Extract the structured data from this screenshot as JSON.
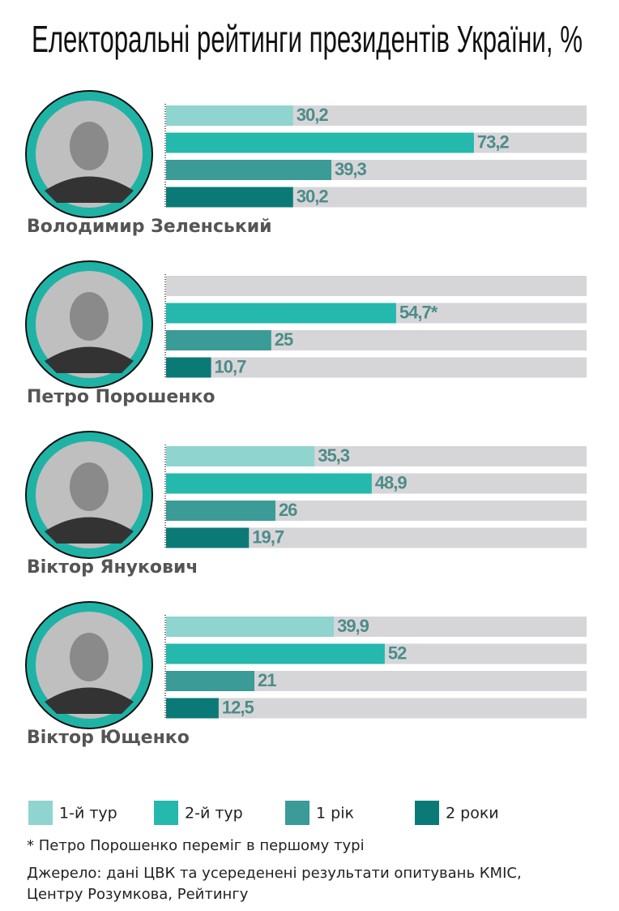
{
  "chart_data": {
    "type": "bar",
    "title": "Електоральні рейтинги президентів України, %",
    "categories": [
      "Володимир Зеленський",
      "Петро Порошенко",
      "Віктор Янукович",
      "Віктор Ющенко"
    ],
    "xlim": [
      0,
      100
    ],
    "series": [
      {
        "name": "1-й тур",
        "color": "#8fd4cf",
        "values": [
          30.2,
          null,
          35.3,
          39.9
        ],
        "value_labels": [
          "30,2",
          null,
          "35,3",
          "39,9"
        ]
      },
      {
        "name": "2-й тур",
        "color": "#25b8ac",
        "values": [
          73.2,
          54.7,
          48.9,
          52
        ],
        "value_labels": [
          "73,2",
          "54,7*",
          "48,9",
          "52"
        ]
      },
      {
        "name": "1 рік",
        "color": "#3a9b97",
        "values": [
          39.3,
          25,
          26,
          21
        ],
        "value_labels": [
          "39,3",
          "25",
          "26",
          "21"
        ]
      },
      {
        "name": "2 роки",
        "color": "#0b7a77",
        "values": [
          30.2,
          10.7,
          19.7,
          12.5
        ],
        "value_labels": [
          "30,2",
          "10,7",
          "19,7",
          "12,5"
        ]
      }
    ],
    "footnote": "* Петро Порошенко переміг в першому турі",
    "source": [
      "Джерело: дані ЦВК та усереденені результати опитувань КМІС,",
      "Центру Розумкова, Рейтингу"
    ]
  }
}
